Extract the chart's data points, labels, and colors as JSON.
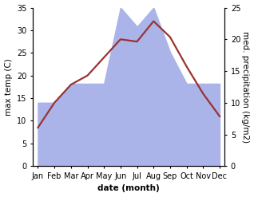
{
  "months": [
    "Jan",
    "Feb",
    "Mar",
    "Apr",
    "May",
    "Jun",
    "Jul",
    "Aug",
    "Sep",
    "Oct",
    "Nov",
    "Dec"
  ],
  "month_x": [
    0,
    1,
    2,
    3,
    4,
    5,
    6,
    7,
    8,
    9,
    10,
    11
  ],
  "temperature": [
    8.5,
    14.0,
    18.0,
    20.0,
    24.0,
    28.0,
    27.5,
    32.0,
    28.5,
    22.0,
    16.0,
    11.0
  ],
  "precipitation": [
    10.0,
    10.0,
    13.0,
    13.0,
    13.0,
    25.0,
    22.0,
    25.0,
    18.0,
    13.0,
    13.0,
    13.0
  ],
  "temp_color": "#993333",
  "precip_color": "#aab4e8",
  "temp_ylim": [
    0,
    35
  ],
  "precip_ylim": [
    0,
    25
  ],
  "temp_yticks": [
    0,
    5,
    10,
    15,
    20,
    25,
    30,
    35
  ],
  "precip_yticks": [
    0,
    5,
    10,
    15,
    20,
    25
  ],
  "xlabel": "date (month)",
  "ylabel_left": "max temp (C)",
  "ylabel_right": "med. precipitation (kg/m2)",
  "label_fontsize": 7.5,
  "tick_fontsize": 7,
  "background_color": "#ffffff"
}
